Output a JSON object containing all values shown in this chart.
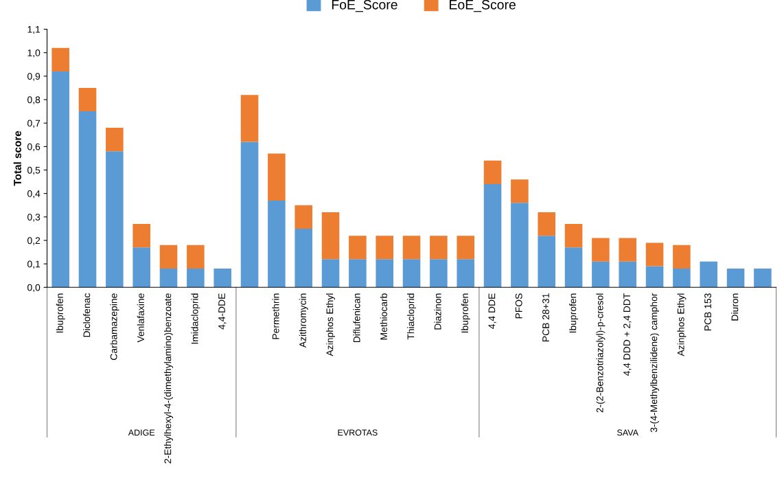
{
  "chart_data": {
    "type": "bar",
    "stacked": true,
    "ylabel": "Total score",
    "categories": [
      "Ibuprofen",
      "Diclofenac",
      "Carbamazepine",
      "Venlafaxine",
      "2-Ethylhexyl-4-(dimethylamino)benzoate",
      "Imidacloprid",
      "4,4-DDE",
      null,
      "Permethrin",
      "Azithromycin",
      "Azinphos Ethyl",
      "Diflufenican",
      "Methiocarb",
      "Thiacloprid",
      "Diazinon",
      "Ibuprofen",
      "4,4 DDE",
      "PFOS",
      "PCB 28+31",
      "Ibuprofen",
      "2-(2-Benzotriazolyl)-p-cresol",
      "4,4 DDD + 2,4 DDT",
      "3-(4-Methylbenzilidene) camphor",
      "Azinphos Ethyl",
      "PCB 153",
      "Diuron",
      null
    ],
    "series": [
      {
        "name": "FoE_Score",
        "color": "#5b9bd5",
        "values": [
          0.92,
          0.75,
          0.58,
          0.17,
          0.08,
          0.08,
          0.08,
          0.62,
          0.37,
          0.25,
          0.12,
          0.12,
          0.12,
          0.12,
          0.12,
          0.12,
          0.44,
          0.36,
          0.22,
          0.17,
          0.11,
          0.11,
          0.09,
          0.08,
          0.11,
          0.08,
          0.08
        ]
      },
      {
        "name": "EoE_Score",
        "color": "#ed7d31",
        "values": [
          0.1,
          0.1,
          0.1,
          0.1,
          0.1,
          0.1,
          0,
          0.2,
          0.2,
          0.1,
          0.2,
          0.1,
          0.1,
          0.1,
          0.1,
          0.1,
          0.1,
          0.1,
          0.1,
          0.1,
          0.1,
          0.1,
          0.1,
          0.1,
          0,
          0,
          0
        ]
      }
    ],
    "ylim": [
      0,
      1.1
    ],
    "yticks": [
      {
        "value": 0,
        "label": "0,0"
      },
      {
        "value": 0.1,
        "label": "0,1"
      },
      {
        "value": 0.2,
        "label": "0,2"
      },
      {
        "value": 0.3,
        "label": "0,3"
      },
      {
        "value": 0.4,
        "label": "0,4"
      },
      {
        "value": 0.5,
        "label": "0,5"
      },
      {
        "value": 0.6,
        "label": "0,6"
      },
      {
        "value": 0.7,
        "label": "0,7"
      },
      {
        "value": 0.8,
        "label": "0,8"
      },
      {
        "value": 0.9,
        "label": "0,9"
      },
      {
        "value": 1.0,
        "label": "1,0"
      },
      {
        "value": 1.1,
        "label": "1,1"
      }
    ],
    "legend": "top",
    "annotations": [
      "ADIGE",
      "EVROTAS",
      "SAVA"
    ]
  }
}
